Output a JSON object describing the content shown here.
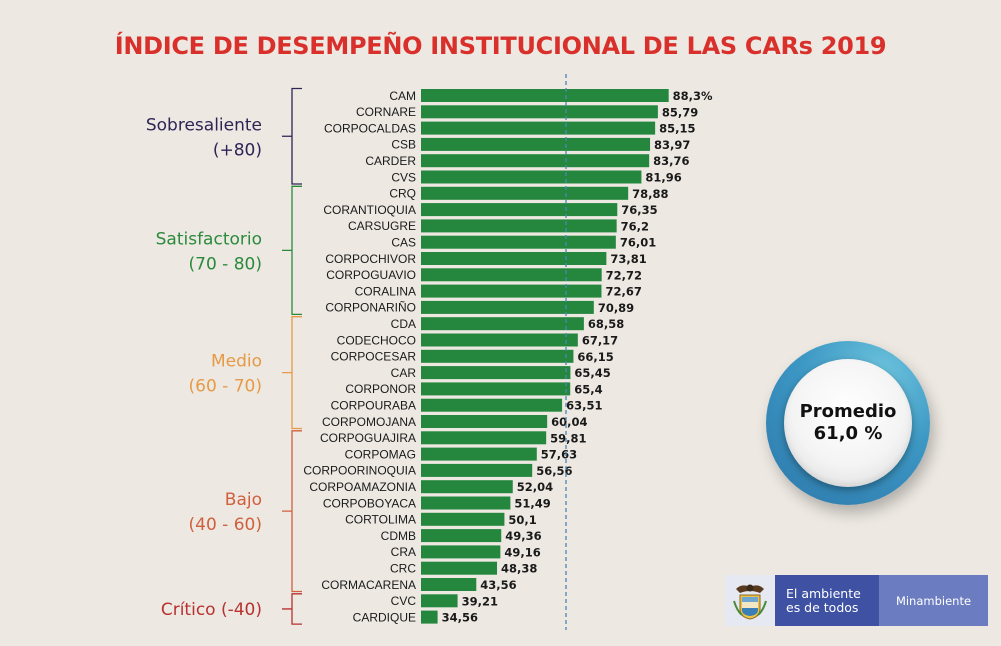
{
  "header": {
    "title": "ÍNDICE DE DESEMPEÑO INSTITUCIONAL DE LAS CARs 2019"
  },
  "promedio": {
    "label": "Promedio",
    "value": "61,0 %"
  },
  "logo": {
    "emblem_icon": "colombia-coat-of-arms-icon",
    "slogan_line1": "El ambiente",
    "slogan_line2": "es de todos",
    "ministry": "Minambiente"
  },
  "colors": {
    "bar": "#25873e",
    "title": "#d9302b",
    "average_line": "#4a86b8"
  },
  "chart_data": {
    "type": "bar",
    "orientation": "horizontal",
    "title": "ÍNDICE DE DESEMPEÑO INSTITUCIONAL DE LAS CARs 2019",
    "xlabel": "",
    "ylabel": "",
    "grid": false,
    "average_line": {
      "value": 61.0,
      "label": "Promedio 61,0 %"
    },
    "categories": [
      "CAM",
      "CORNARE",
      "CORPOCALDAS",
      "CSB",
      "CARDER",
      "CVS",
      "CRQ",
      "CORANTIOQUIA",
      "CARSUGRE",
      "CAS",
      "CORPOCHIVOR",
      "CORPOGUAVIO",
      "CORALINA",
      "CORPONARIÑO",
      "CDA",
      "CODECHOCO",
      "CORPOCESAR",
      "CAR",
      "CORPONOR",
      "CORPOURABA",
      "CORPOMOJANA",
      "CORPOGUAJIRA",
      "CORPOMAG",
      "CORPOORINOQUIA",
      "CORPOAMAZONIA",
      "CORPOBOYACA",
      "CORTOLIMA",
      "CDMB",
      "CRA",
      "CRC",
      "CORMACARENA",
      "CVC",
      "CARDIQUE"
    ],
    "values": [
      88.3,
      85.79,
      85.15,
      83.97,
      83.76,
      81.96,
      78.88,
      76.35,
      76.2,
      76.01,
      73.81,
      72.72,
      72.67,
      70.89,
      68.58,
      67.17,
      66.15,
      65.45,
      65.4,
      63.51,
      60.04,
      59.81,
      57.63,
      56.56,
      52.04,
      51.49,
      50.1,
      49.36,
      49.16,
      48.38,
      43.56,
      39.21,
      34.56
    ],
    "value_labels": [
      "88,3%",
      "85,79",
      "85,15",
      "83,97",
      "83,76",
      "81,96",
      "78,88",
      "76,35",
      "76,2",
      "76,01",
      "73,81",
      "72,72",
      "72,67",
      "70,89",
      "68,58",
      "67,17",
      "66,15",
      "65,45",
      "65,4",
      "63,51",
      "60,04",
      "59,81",
      "57,63",
      "56,56",
      "52,04",
      "51,49",
      "50,1",
      "49,36",
      "49,16",
      "48,38",
      "43,56",
      "39,21",
      "34,56"
    ],
    "groups": [
      {
        "name": "Sobresaliente",
        "range": "(+80)",
        "start": 0,
        "end": 5,
        "color": "#2e2555"
      },
      {
        "name": "Satisfactorio",
        "range": "(70 - 80)",
        "start": 6,
        "end": 13,
        "color": "#2a8a3c"
      },
      {
        "name": "Medio",
        "range": "(60 - 70)",
        "start": 14,
        "end": 20,
        "color": "#e69a45"
      },
      {
        "name": "Bajo",
        "range": "(40 - 60)",
        "start": 21,
        "end": 30,
        "color": "#d0603c"
      },
      {
        "name": "Crítico",
        "range": "(-40)",
        "start": 31,
        "end": 32,
        "color": "#b8312f",
        "single_line": true
      }
    ]
  }
}
